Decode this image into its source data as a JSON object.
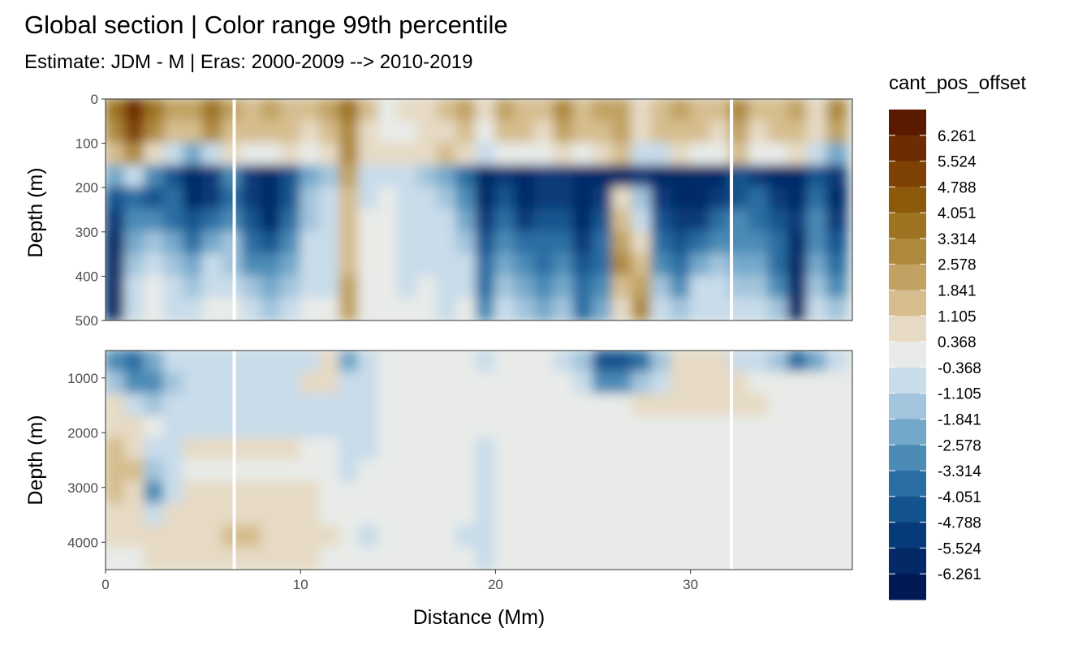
{
  "chart_data": {
    "type": "heatmap",
    "title": "Global section | Color range 99th percentile",
    "subtitle": "Estimate: JDM - M | Eras: 2000-2009 --> 2010-2019",
    "xlabel": "Distance (Mm)",
    "ylabel": "Depth (m)",
    "x_ticks": [
      0,
      10,
      20,
      30
    ],
    "xlim": [
      0,
      38.3
    ],
    "panels": [
      {
        "name": "upper",
        "ylim": [
          0,
          500
        ],
        "y_ticks": [
          0,
          100,
          200,
          300,
          400,
          500
        ],
        "y_reversed": true
      },
      {
        "name": "lower",
        "ylim": [
          500,
          4500
        ],
        "y_ticks": [
          1000,
          2000,
          3000,
          4000
        ],
        "y_reversed": true
      }
    ],
    "legend": {
      "title": "cant_pos_offset",
      "placement": "right",
      "breaks": [
        "6.261",
        "5.524",
        "4.788",
        "4.051",
        "3.314",
        "2.578",
        "1.841",
        "1.105",
        "0.368",
        "-0.368",
        "-1.105",
        "-1.841",
        "-2.578",
        "-3.314",
        "-4.051",
        "-4.788",
        "-5.524",
        "-6.261"
      ],
      "colors": [
        "#5a1a00",
        "#6e2c02",
        "#7e4304",
        "#8d5a0b",
        "#9e7321",
        "#ae893d",
        "#c1a262",
        "#d5bd8e",
        "#e6dac4",
        "#e8ebe8",
        "#c8dcea",
        "#a2c4dc",
        "#74a8ca",
        "#4b8bb6",
        "#2b6ea3",
        "#13548f",
        "#073a79",
        "#032a67",
        "#011a55"
      ]
    },
    "gaps_x": [
      6.6,
      32.1
    ],
    "fields": {
      "upper": {
        "x": [
          0.5,
          1.5,
          2.5,
          3.5,
          4.5,
          5.5,
          6.5,
          7.5,
          8.5,
          9.5,
          10.5,
          11.5,
          12.5,
          13.5,
          14.5,
          15.5,
          16.5,
          17.5,
          18.5,
          19.5,
          20.5,
          21.5,
          22.5,
          23.5,
          24.5,
          25.5,
          26.5,
          27.5,
          28.5,
          29.5,
          30.5,
          31.5,
          32.5,
          33.5,
          34.5,
          35.5,
          36.5,
          37.5
        ],
        "y": [
          25,
          75,
          125,
          175,
          225,
          275,
          325,
          375,
          425,
          475
        ],
        "values": [
          [
            4.0,
            6.2,
            3.5,
            2.1,
            2.5,
            3.8,
            2.0,
            1.6,
            2.3,
            1.8,
            1.3,
            2.2,
            3.6,
            1.2,
            0.3,
            0.5,
            0.6,
            1.4,
            2.2,
            0.4,
            2.2,
            1.7,
            1.5,
            3.2,
            1.7,
            2.0,
            2.4,
            0.8,
            1.6,
            2.2,
            1.8,
            1.3,
            2.6,
            1.2,
            1.8,
            2.3,
            0.7,
            2.6
          ],
          [
            3.1,
            5.5,
            3.2,
            1.3,
            1.7,
            2.6,
            1.6,
            1.3,
            1.8,
            1.5,
            1.0,
            1.6,
            2.6,
            0.7,
            0.2,
            0.3,
            0.5,
            1.1,
            1.8,
            0.2,
            1.6,
            1.2,
            1.0,
            2.5,
            1.4,
            1.5,
            2.0,
            0.6,
            1.3,
            1.7,
            1.4,
            1.0,
            2.0,
            0.9,
            1.5,
            1.8,
            0.5,
            1.9
          ],
          [
            1.5,
            3.2,
            0.8,
            -0.9,
            -2.5,
            -1.0,
            0.6,
            0.3,
            0.2,
            0.4,
            0.2,
            0.8,
            3.1,
            0.8,
            0.8,
            1.1,
            0.6,
            1.2,
            0.4,
            -0.5,
            0.2,
            0.3,
            0.3,
            0.9,
            -0.2,
            0.7,
            1.2,
            -0.4,
            -0.6,
            0.4,
            0.2,
            0.3,
            1.8,
            -0.3,
            0.2,
            0.6,
            -0.8,
            -2.5
          ],
          [
            -2.5,
            -0.5,
            -3.2,
            -4.5,
            -5.6,
            -5.5,
            -3.0,
            -4.9,
            -5.6,
            -4.6,
            -2.2,
            -1.5,
            2.0,
            -1.0,
            -0.8,
            -0.5,
            -1.3,
            -2.2,
            -3.6,
            -6.0,
            -4.8,
            -5.6,
            -5.0,
            -5.2,
            -6.0,
            -5.8,
            -5.6,
            -5.0,
            -5.8,
            -5.6,
            -6.0,
            -5.8,
            -4.6,
            -5.2,
            -5.8,
            -5.8,
            -4.4,
            -5.4
          ],
          [
            -4.2,
            -3.5,
            -4.6,
            -4.0,
            -5.8,
            -4.8,
            -3.6,
            -5.2,
            -5.9,
            -4.4,
            -1.6,
            -0.6,
            1.5,
            -0.5,
            -0.3,
            -0.5,
            -0.6,
            -1.2,
            -2.6,
            -5.8,
            -4.4,
            -5.6,
            -5.0,
            -5.4,
            -6.0,
            -5.0,
            0.5,
            -1.6,
            -5.5,
            -5.6,
            -5.8,
            -4.9,
            -4.5,
            -4.0,
            -5.2,
            -5.6,
            -3.6,
            -5.6
          ],
          [
            -5.0,
            -3.0,
            -2.8,
            -3.6,
            -4.4,
            -3.4,
            -2.6,
            -4.6,
            -5.6,
            -3.8,
            -1.2,
            -0.5,
            1.4,
            -0.3,
            -0.2,
            -0.4,
            -0.5,
            -0.7,
            -2.0,
            -5.0,
            -3.6,
            -4.8,
            -4.4,
            -4.6,
            -5.6,
            -4.4,
            1.6,
            -0.4,
            -4.6,
            -5.0,
            -4.8,
            -3.8,
            -3.2,
            -3.5,
            -4.6,
            -5.2,
            -3.2,
            -5.0
          ],
          [
            -5.6,
            -2.2,
            -1.5,
            -2.4,
            -3.4,
            -2.0,
            -1.8,
            -3.6,
            -4.2,
            -3.2,
            -0.8,
            -0.5,
            1.6,
            -0.2,
            -0.2,
            -0.4,
            -0.4,
            -0.6,
            -1.5,
            -4.5,
            -2.8,
            -4.0,
            -4.0,
            -3.6,
            -5.2,
            -4.0,
            2.4,
            0.4,
            -3.6,
            -4.4,
            -3.4,
            -2.6,
            -2.6,
            -2.8,
            -4.0,
            -5.6,
            -2.6,
            -4.2
          ],
          [
            -5.8,
            -1.5,
            -0.8,
            -1.6,
            -2.4,
            -1.1,
            -1.2,
            -2.6,
            -3.0,
            -2.2,
            -0.5,
            -0.5,
            1.8,
            -0.2,
            -0.2,
            -0.4,
            -0.4,
            -0.6,
            -1.0,
            -4.0,
            -2.2,
            -3.2,
            -3.6,
            -2.8,
            -4.6,
            -3.6,
            2.6,
            1.2,
            -2.6,
            -3.6,
            -2.2,
            -1.8,
            -2.0,
            -2.2,
            -3.4,
            -5.8,
            -2.0,
            -3.4
          ],
          [
            -6.1,
            -1.0,
            -0.3,
            -1.0,
            -1.4,
            -0.4,
            -0.6,
            -1.6,
            -2.0,
            -1.4,
            -0.4,
            -0.4,
            2.0,
            -0.1,
            -0.1,
            -0.4,
            -0.3,
            -0.6,
            -0.5,
            -3.4,
            -1.4,
            -2.4,
            -3.0,
            -2.0,
            -4.0,
            -3.0,
            1.6,
            2.0,
            -1.6,
            -2.6,
            -1.0,
            -1.0,
            -1.4,
            -1.6,
            -2.6,
            -6.0,
            -1.4,
            -2.6
          ],
          [
            -6.2,
            -0.6,
            0.1,
            -0.4,
            -0.6,
            0.2,
            0.3,
            -0.8,
            -1.2,
            -0.8,
            -0.2,
            -0.3,
            2.2,
            -0.1,
            -0.1,
            -0.3,
            -0.3,
            -0.5,
            -0.2,
            -2.8,
            -0.8,
            -1.6,
            -2.4,
            -1.4,
            -3.4,
            -2.4,
            0.8,
            2.6,
            -0.8,
            -1.6,
            -0.4,
            -0.4,
            -0.8,
            -1.0,
            -1.8,
            -6.2,
            -0.8,
            -1.8
          ]
        ]
      },
      "lower": {
        "x": [
          0.5,
          1.5,
          2.5,
          3.5,
          4.5,
          5.5,
          6.5,
          7.5,
          8.5,
          9.5,
          10.5,
          11.5,
          12.5,
          13.5,
          14.5,
          15.5,
          16.5,
          17.5,
          18.5,
          19.5,
          20.5,
          21.5,
          22.5,
          23.5,
          24.5,
          25.5,
          26.5,
          27.5,
          28.5,
          29.5,
          30.5,
          31.5,
          32.5,
          33.5,
          34.5,
          35.5,
          36.5,
          37.5
        ],
        "y": [
          700,
          1100,
          1500,
          1900,
          2300,
          2700,
          3100,
          3500,
          3900,
          4300
        ],
        "values": [
          [
            -2.8,
            -3.5,
            -2.2,
            -1.0,
            -0.6,
            -0.5,
            -0.8,
            -0.7,
            -0.6,
            -0.6,
            -0.5,
            0.4,
            -2.2,
            -0.4,
            -0.2,
            -0.1,
            0.0,
            -0.2,
            -0.3,
            -0.6,
            -0.2,
            -0.1,
            -0.1,
            -0.4,
            -1.6,
            -4.2,
            -4.6,
            -3.6,
            -1.8,
            0.6,
            0.8,
            0.5,
            -0.8,
            -0.5,
            -1.2,
            -3.6,
            -2.0,
            -0.4
          ],
          [
            -1.5,
            -2.8,
            -3.2,
            -1.6,
            -0.6,
            -0.5,
            -0.6,
            -0.5,
            -0.4,
            -0.4,
            0.4,
            0.6,
            -1.0,
            -0.4,
            -0.1,
            0.0,
            0.0,
            -0.1,
            -0.2,
            -0.3,
            -0.1,
            0.0,
            0.0,
            -0.2,
            -0.6,
            -2.8,
            -3.2,
            -1.8,
            -0.8,
            0.6,
            0.7,
            0.6,
            0.4,
            0.3,
            0.2,
            0.2,
            0.0,
            0.0
          ],
          [
            0.8,
            -0.8,
            -1.2,
            -1.0,
            -0.5,
            -0.4,
            -0.4,
            -0.4,
            -0.5,
            -0.6,
            -0.4,
            -0.5,
            -0.8,
            -0.4,
            -0.1,
            0.0,
            0.0,
            0.0,
            -0.1,
            -0.2,
            0.0,
            0.0,
            0.0,
            0.0,
            0.0,
            0.2,
            0.3,
            0.4,
            0.5,
            0.5,
            0.5,
            0.6,
            0.6,
            0.5,
            0.3,
            0.0,
            0.0,
            0.0
          ],
          [
            1.0,
            0.4,
            -0.2,
            -0.8,
            -0.4,
            -0.4,
            -0.6,
            -0.4,
            -0.5,
            -0.4,
            -0.6,
            -0.4,
            -0.6,
            -0.4,
            0.0,
            0.0,
            0.0,
            0.0,
            -0.1,
            -0.2,
            0.0,
            0.0,
            0.0,
            0.0,
            0.0,
            0.0,
            0.0,
            0.0,
            0.0,
            0.0,
            0.0,
            0.0,
            0.0,
            0.0,
            0.0,
            0.0,
            0.0,
            0.0
          ],
          [
            1.2,
            0.8,
            -0.4,
            -0.9,
            0.6,
            0.5,
            0.4,
            0.5,
            0.6,
            0.4,
            0.2,
            0.0,
            -0.4,
            -0.5,
            0.0,
            0.0,
            0.0,
            0.0,
            -0.1,
            -0.5,
            0.0,
            0.0,
            0.0,
            0.0,
            0.0,
            0.0,
            0.0,
            0.0,
            0.0,
            0.0,
            0.0,
            0.0,
            0.0,
            0.0,
            0.0,
            0.0,
            0.0,
            0.0
          ],
          [
            1.8,
            1.2,
            -1.8,
            -0.6,
            -0.2,
            0.0,
            0.0,
            -0.2,
            0.0,
            -0.1,
            0.0,
            0.0,
            -0.5,
            -0.3,
            0.0,
            0.0,
            0.0,
            0.0,
            -0.2,
            -0.6,
            0.0,
            0.0,
            0.0,
            0.0,
            0.0,
            0.0,
            0.0,
            0.0,
            0.0,
            0.0,
            0.0,
            0.0,
            0.0,
            0.0,
            0.0,
            0.0,
            0.0,
            0.0
          ],
          [
            1.6,
            1.0,
            -2.8,
            -0.4,
            0.5,
            0.6,
            0.7,
            0.8,
            0.6,
            0.5,
            0.4,
            0.3,
            0.2,
            0.0,
            0.0,
            0.0,
            0.0,
            0.0,
            -0.2,
            -0.5,
            0.0,
            0.0,
            0.0,
            0.0,
            0.0,
            0.0,
            0.0,
            0.0,
            0.0,
            0.0,
            0.0,
            0.0,
            0.0,
            0.0,
            0.0,
            0.0,
            0.0,
            0.0
          ],
          [
            0.9,
            0.6,
            -0.8,
            0.5,
            0.7,
            0.8,
            0.8,
            0.7,
            0.6,
            0.5,
            0.4,
            0.2,
            0.0,
            -0.2,
            0.0,
            0.0,
            0.0,
            0.0,
            -0.3,
            -0.4,
            0.0,
            0.0,
            0.0,
            0.0,
            0.0,
            0.0,
            0.0,
            0.0,
            0.0,
            0.0,
            0.0,
            0.0,
            0.0,
            0.0,
            0.0,
            0.0,
            0.0,
            0.0
          ],
          [
            0.5,
            0.4,
            0.4,
            0.6,
            0.9,
            1.0,
            1.2,
            1.5,
            1.1,
            0.8,
            0.5,
            0.4,
            0.0,
            -0.4,
            0.0,
            0.0,
            0.0,
            0.0,
            -0.4,
            -0.4,
            0.0,
            0.0,
            0.0,
            0.0,
            0.0,
            0.0,
            0.0,
            0.0,
            0.0,
            0.0,
            0.0,
            0.0,
            0.0,
            0.0,
            0.0,
            0.0,
            0.0,
            0.0
          ],
          [
            0.0,
            0.0,
            0.4,
            0.5,
            0.6,
            0.6,
            0.5,
            0.5,
            0.5,
            0.4,
            0.4,
            0.3,
            0.0,
            0.0,
            0.0,
            0.0,
            0.0,
            0.0,
            -0.3,
            -0.5,
            0.0,
            0.0,
            0.0,
            0.0,
            0.0,
            0.0,
            0.0,
            0.0,
            0.0,
            0.0,
            0.0,
            0.0,
            0.0,
            0.0,
            0.0,
            0.0,
            0.0,
            0.0
          ]
        ]
      }
    }
  }
}
